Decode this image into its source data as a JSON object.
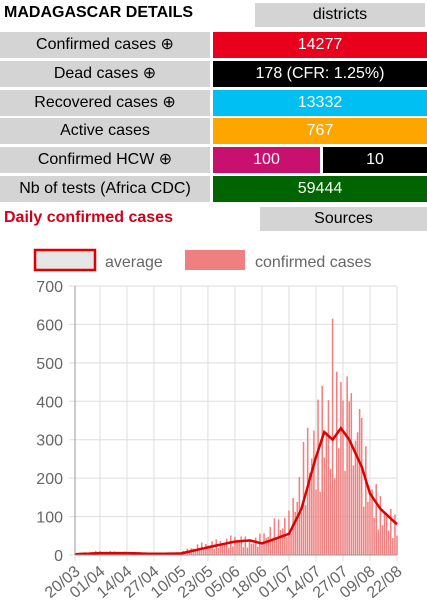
{
  "header": {
    "title": "MADAGASCAR DETAILS",
    "districts_label": "districts"
  },
  "stats": {
    "confirmed": {
      "label": "Confirmed cases ⊕",
      "value": "14277",
      "color": "#e8001c"
    },
    "dead": {
      "label": "Dead cases ⊕",
      "value": "178 (CFR: 1.25%)",
      "color": "#000000"
    },
    "recovered": {
      "label": "Recovered cases ⊕",
      "value": "13332",
      "color": "#00c0f3"
    },
    "active": {
      "label": "Active cases",
      "value": "767",
      "color": "#ffa500"
    },
    "hcw": {
      "label": "Confirmed HCW ⊕",
      "value_a": "100",
      "value_b": "10",
      "color_a": "#c8106e",
      "color_b": "#000000"
    },
    "tests": {
      "label": "Nb of tests (Africa CDC)",
      "value": "59444",
      "color": "#006400"
    }
  },
  "daily": {
    "title": "Daily confirmed cases",
    "sources_label": "Sources"
  },
  "chart_data": {
    "type": "bar",
    "legend": [
      "average",
      "confirmed cases"
    ],
    "ylim": [
      0,
      700
    ],
    "yticks": [
      0,
      100,
      200,
      300,
      400,
      500,
      600,
      700
    ],
    "x_start": "20/03",
    "x_end": "22/08",
    "xticks": [
      "20/03",
      "01/04",
      "14/04",
      "27/04",
      "10/05",
      "23/05",
      "05/06",
      "18/06",
      "01/07",
      "14/07",
      "27/07",
      "09/08",
      "22/08"
    ],
    "bar_color": "#f08080",
    "line_color": "#e00000",
    "daily_keyframes": [
      [
        "20/03",
        3
      ],
      [
        "31/03",
        8
      ],
      [
        "13/04",
        6
      ],
      [
        "27/04",
        2
      ],
      [
        "10/05",
        6
      ],
      [
        "19/05",
        22
      ],
      [
        "01/06",
        32
      ],
      [
        "06/06",
        40
      ],
      [
        "12/06",
        30
      ],
      [
        "18/06",
        40
      ],
      [
        "25/06",
        70
      ],
      [
        "01/07",
        80
      ],
      [
        "07/07",
        180
      ],
      [
        "10/07",
        250
      ],
      [
        "14/07",
        270
      ],
      [
        "18/07",
        310
      ],
      [
        "22/07",
        360
      ],
      [
        "27/07",
        340
      ],
      [
        "01/08",
        300
      ],
      [
        "05/08",
        250
      ],
      [
        "09/08",
        160
      ],
      [
        "14/08",
        110
      ],
      [
        "18/08",
        90
      ],
      [
        "22/08",
        70
      ]
    ],
    "daily_peaks": [
      [
        "22/07",
        615
      ],
      [
        "17/07",
        440
      ],
      [
        "26/07",
        450
      ],
      [
        "30/07",
        400
      ],
      [
        "04/08",
        380
      ]
    ],
    "average_keyframes": [
      [
        "20/03",
        2
      ],
      [
        "01/04",
        5
      ],
      [
        "14/04",
        5
      ],
      [
        "27/04",
        3
      ],
      [
        "10/05",
        4
      ],
      [
        "23/05",
        20
      ],
      [
        "05/06",
        35
      ],
      [
        "12/06",
        38
      ],
      [
        "18/06",
        30
      ],
      [
        "01/07",
        55
      ],
      [
        "07/07",
        120
      ],
      [
        "14/07",
        255
      ],
      [
        "18/07",
        320
      ],
      [
        "22/07",
        300
      ],
      [
        "26/07",
        330
      ],
      [
        "30/07",
        300
      ],
      [
        "05/08",
        230
      ],
      [
        "09/08",
        160
      ],
      [
        "14/08",
        120
      ],
      [
        "22/08",
        80
      ]
    ]
  }
}
